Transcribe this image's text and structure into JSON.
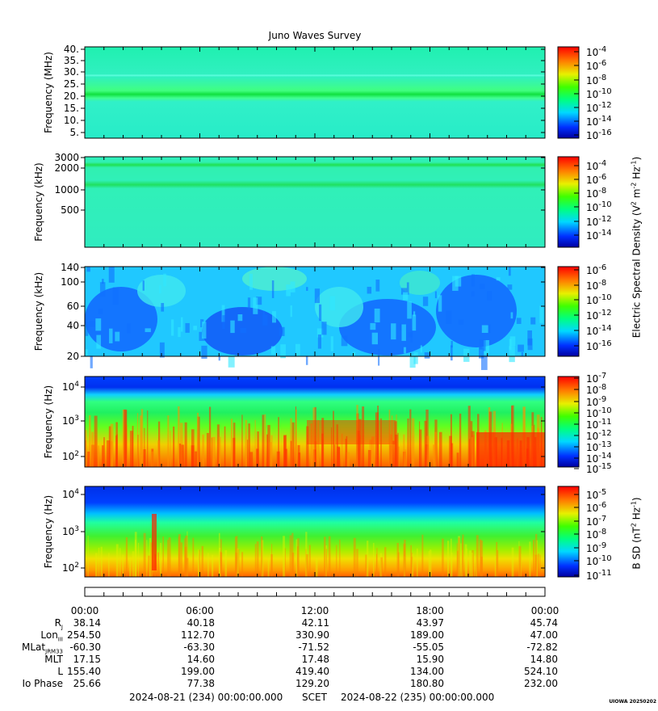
{
  "title": "Juno Waves Survey",
  "chart_data": [
    {
      "type": "heatmap",
      "ylabel": "Frequency (MHz)",
      "yticks": [
        "40.",
        "35.",
        "30.",
        "25.",
        "20.",
        "15.",
        "10.",
        "5."
      ],
      "colorbar_ticks": [
        "10-4",
        "10-6",
        "10-8",
        "10-10",
        "10-12",
        "10-14",
        "10-16"
      ],
      "colorbar_exponents": [
        "-4",
        "-6",
        "-8",
        "-10",
        "-12",
        "-14",
        "-16"
      ]
    },
    {
      "type": "heatmap",
      "ylabel": "Frequency (kHz)",
      "yticks": [
        "3000",
        "2000",
        "1000",
        "500"
      ],
      "colorbar_exponents": [
        "-4",
        "-6",
        "-8",
        "-10",
        "-12",
        "-14"
      ]
    },
    {
      "type": "heatmap",
      "ylabel": "Frequency (kHz)",
      "yticks": [
        "140",
        "100",
        "60",
        "40",
        "20"
      ],
      "colorbar_exponents": [
        "-6",
        "-8",
        "-10",
        "-12",
        "-14",
        "-16"
      ]
    },
    {
      "type": "heatmap",
      "ylabel": "Frequency (Hz)",
      "yticks_exp": [
        "4",
        "3",
        "2"
      ],
      "colorbar_exponents": [
        "-7",
        "-8",
        "-9",
        "-10",
        "-11",
        "-12",
        "-13",
        "-14",
        "-15"
      ]
    },
    {
      "type": "heatmap",
      "ylabel": "Frequency (Hz)",
      "yticks_exp": [
        "4",
        "3",
        "2"
      ],
      "colorbar_exponents": [
        "-5",
        "-6",
        "-7",
        "-8",
        "-9",
        "-10",
        "-11"
      ]
    }
  ],
  "colorbar_label_electric": "Electric Spectral Density (V",
  "colorbar_label_electric_parts": {
    "a": "Electric Spectral Density (V",
    "b": "2",
    "c": " m",
    "d": "-2",
    "e": " Hz",
    "f": "-1",
    "g": ")"
  },
  "colorbar_label_magnetic_parts": {
    "a": "B SD (nT",
    "b": "2",
    "c": " Hz",
    "d": "-1",
    "e": ")"
  },
  "time_ticks": [
    "00:00",
    "06:00",
    "12:00",
    "18:00",
    "00:00"
  ],
  "ephemeris": {
    "rows": [
      {
        "label": "R",
        "sub": "J",
        "values": [
          "38.14",
          "40.18",
          "42.11",
          "43.97",
          "45.74"
        ]
      },
      {
        "label": "Lon",
        "sub": "III",
        "values": [
          "254.50",
          "112.70",
          "330.90",
          "189.00",
          "47.00"
        ]
      },
      {
        "label": "MLat",
        "sub": "JRM33",
        "values": [
          "-60.30",
          "-63.30",
          "-71.52",
          "-55.05",
          "-72.82"
        ]
      },
      {
        "label": "MLT",
        "sub": "",
        "values": [
          "17.15",
          "14.60",
          "17.48",
          "15.90",
          "14.80"
        ]
      },
      {
        "label": "L",
        "sub": "",
        "values": [
          "155.40",
          "199.00",
          "419.40",
          "134.00",
          "524.10"
        ]
      },
      {
        "label": "Io Phase",
        "sub": "",
        "values": [
          "25.66",
          "77.38",
          "129.20",
          "180.80",
          "232.00"
        ]
      }
    ]
  },
  "footer": {
    "start": "2024-08-21 (234) 00:00:00.000",
    "scet": "SCET",
    "end": "2024-08-22 (235) 00:00:00.000"
  },
  "stamp": "UIOWA 20250202"
}
